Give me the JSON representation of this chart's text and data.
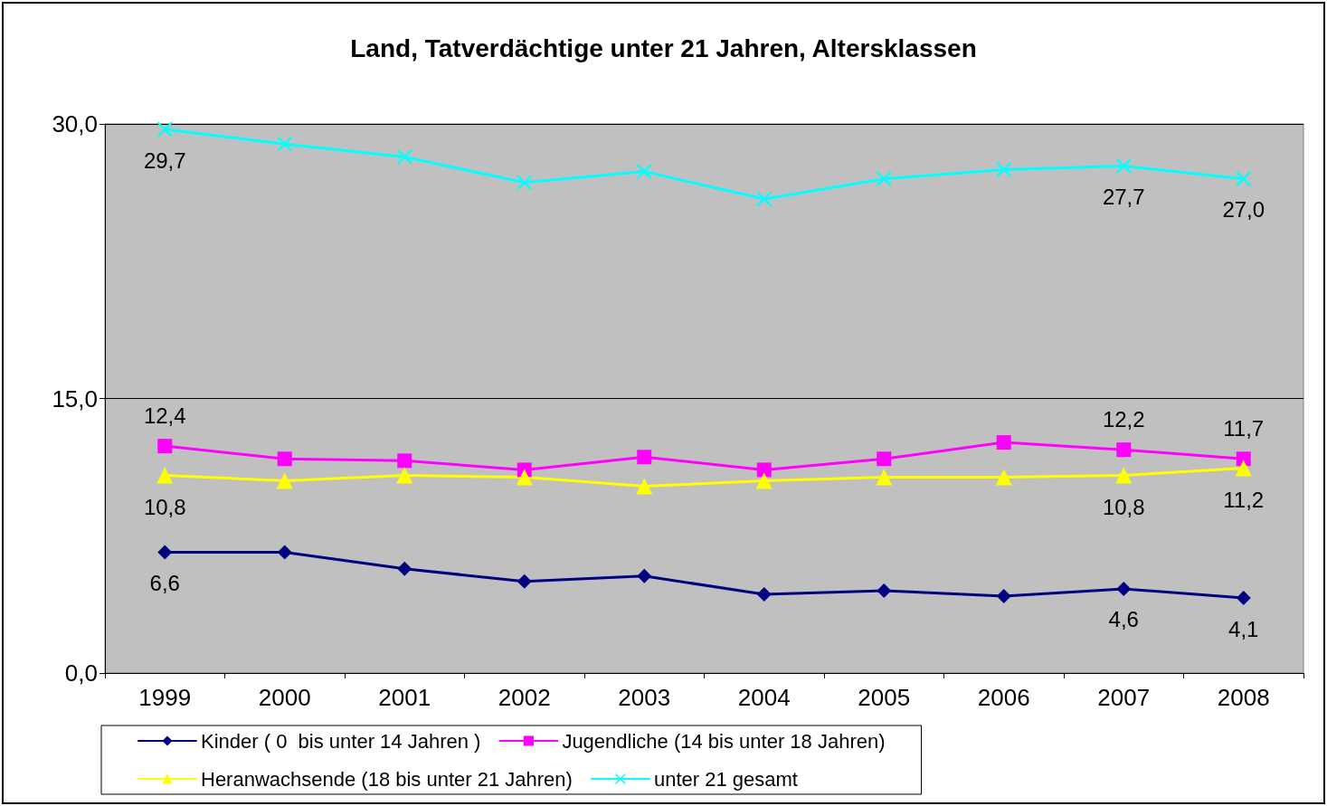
{
  "chart_data": {
    "type": "line",
    "title": "Land, Tatverdächtige unter 21 Jahren, Altersklassen",
    "categories": [
      "1999",
      "2000",
      "2001",
      "2002",
      "2003",
      "2004",
      "2005",
      "2006",
      "2007",
      "2008"
    ],
    "series": [
      {
        "name": "Kinder ( 0  bis unter 14 Jahren )",
        "color": "#000080",
        "marker": "diamond",
        "values": [
          6.6,
          6.6,
          5.7,
          5.0,
          5.3,
          4.3,
          4.5,
          4.2,
          4.6,
          4.1
        ],
        "value_labels": [
          "6,6",
          null,
          null,
          null,
          null,
          null,
          null,
          null,
          "4,6",
          "4,1"
        ]
      },
      {
        "name": "Jugendliche (14 bis unter 18 Jahren)",
        "color": "#ff00ff",
        "marker": "square",
        "values": [
          12.4,
          11.7,
          11.6,
          11.1,
          11.8,
          11.1,
          11.7,
          12.6,
          12.2,
          11.7
        ],
        "value_labels": [
          "12,4",
          null,
          null,
          null,
          null,
          null,
          null,
          null,
          "12,2",
          "11,7"
        ]
      },
      {
        "name": "Heranwachsende (18 bis unter 21 Jahren)",
        "color": "#ffff00",
        "marker": "triangle",
        "values": [
          10.8,
          10.5,
          10.8,
          10.7,
          10.2,
          10.5,
          10.7,
          10.7,
          10.8,
          11.2
        ],
        "value_labels": [
          "10,8",
          null,
          null,
          null,
          null,
          null,
          null,
          null,
          "10,8",
          "11,2"
        ]
      },
      {
        "name": "unter 21 gesamt",
        "color": "#00ffff",
        "marker": "cross",
        "values": [
          29.7,
          28.9,
          28.2,
          26.8,
          27.4,
          25.9,
          27.0,
          27.5,
          27.7,
          27.0
        ],
        "value_labels": [
          "29,7",
          null,
          null,
          null,
          null,
          null,
          null,
          null,
          "27,7",
          "27,0"
        ]
      }
    ],
    "ylim": [
      0,
      30
    ],
    "yticks": [
      {
        "value": 0,
        "label": "0,0"
      },
      {
        "value": 15,
        "label": "15,0"
      },
      {
        "value": 30,
        "label": "30,0"
      }
    ],
    "grid": "y",
    "legend": "bottom",
    "line_style": "solid"
  }
}
